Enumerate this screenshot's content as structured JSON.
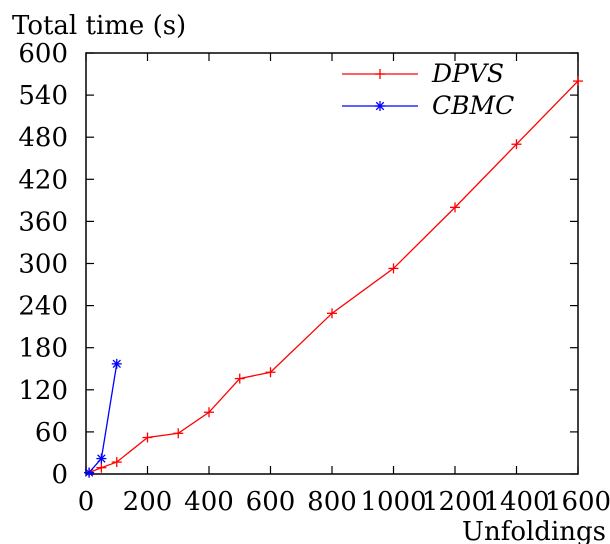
{
  "chart_data": {
    "type": "line",
    "ylabel": "Total time (s)",
    "xlabel": "Unfoldings",
    "xlim": [
      0,
      1600
    ],
    "ylim": [
      0,
      600
    ],
    "x_ticks": [
      0,
      200,
      400,
      600,
      800,
      1000,
      1200,
      1400,
      1600
    ],
    "y_ticks": [
      0,
      60,
      120,
      180,
      240,
      300,
      360,
      420,
      480,
      540,
      600
    ],
    "x_tick_labels": [
      "0",
      "200",
      "400",
      "600",
      "800",
      "1000",
      "1200",
      "1400",
      "1600"
    ],
    "y_tick_labels": [
      "0",
      "60",
      "120",
      "180",
      "240",
      "300",
      "360",
      "420",
      "480",
      "540",
      "600"
    ],
    "grid": false,
    "legend_position": "top-right",
    "series": [
      {
        "name": "DPVS",
        "color": "#ff0000",
        "marker": "plus",
        "x": [
          10,
          50,
          100,
          200,
          300,
          400,
          500,
          600,
          800,
          1000,
          1200,
          1400,
          1600
        ],
        "y": [
          2,
          9,
          17,
          52,
          58,
          88,
          136,
          145,
          229,
          293,
          380,
          470,
          560
        ]
      },
      {
        "name": "CBMC",
        "color": "#0000ff",
        "marker": "star",
        "x": [
          10,
          50,
          100
        ],
        "y": [
          2,
          22,
          157
        ]
      }
    ]
  }
}
